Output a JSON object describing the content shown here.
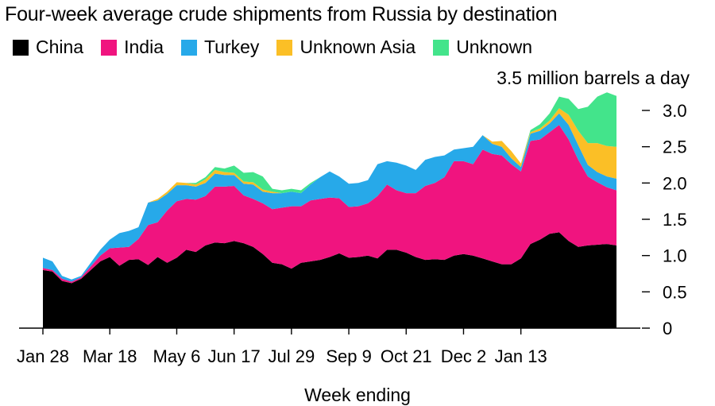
{
  "chart_data": {
    "type": "area",
    "stacked": true,
    "title": "Four-week average crude shipments from Russia by destination",
    "unit_label": "3.5 million barrels a day",
    "xlabel": "Week ending",
    "ylabel": "",
    "ylim": [
      0,
      3.5
    ],
    "y_ticks": [
      0,
      0.5,
      1.0,
      1.5,
      2.0,
      2.5,
      3.0
    ],
    "y_tick_labels": [
      "0",
      "0.5",
      "1.0",
      "1.5",
      "2.0",
      "2.5",
      "3.0"
    ],
    "x_ticks": [
      0,
      7,
      14,
      20,
      26,
      32,
      38,
      44,
      50
    ],
    "x_tick_labels": [
      "Jan 28",
      "Mar 18",
      "May 6",
      "Jun 17",
      "Jul 29",
      "Sep 9",
      "Oct 21",
      "Dec 2",
      "Jan 13"
    ],
    "legend_position": "top-left",
    "grid": false,
    "x": [
      0,
      1,
      2,
      3,
      4,
      5,
      6,
      7,
      8,
      9,
      10,
      11,
      12,
      13,
      14,
      15,
      16,
      17,
      18,
      19,
      20,
      21,
      22,
      23,
      24,
      25,
      26,
      27,
      28,
      29,
      30,
      31,
      32,
      33,
      34,
      35,
      36,
      37,
      38,
      39,
      40,
      41,
      42,
      43,
      44,
      45,
      46,
      47,
      48,
      49,
      50,
      51,
      52,
      53,
      54,
      55,
      56,
      57,
      58,
      59,
      60
    ],
    "series": [
      {
        "name": "China",
        "color": "#000000",
        "values": [
          0.8,
          0.78,
          0.65,
          0.62,
          0.68,
          0.8,
          0.92,
          0.98,
          0.86,
          0.94,
          0.95,
          0.87,
          0.98,
          0.9,
          0.97,
          1.08,
          1.05,
          1.14,
          1.18,
          1.17,
          1.2,
          1.17,
          1.12,
          1.02,
          0.9,
          0.88,
          0.82,
          0.9,
          0.92,
          0.94,
          0.98,
          1.03,
          0.97,
          0.98,
          1.0,
          0.96,
          1.08,
          1.08,
          1.04,
          0.98,
          0.94,
          0.95,
          0.94,
          1.0,
          1.02,
          1.0,
          0.96,
          0.92,
          0.88,
          0.88,
          0.96,
          1.16,
          1.22,
          1.3,
          1.32,
          1.2,
          1.12,
          1.14,
          1.15,
          1.16,
          1.14
        ]
      },
      {
        "name": "India",
        "color": "#f0147f",
        "values": [
          0.03,
          0.02,
          0.03,
          0.02,
          0.02,
          0.05,
          0.08,
          0.12,
          0.25,
          0.18,
          0.28,
          0.55,
          0.48,
          0.72,
          0.78,
          0.7,
          0.72,
          0.68,
          0.77,
          0.78,
          0.76,
          0.66,
          0.66,
          0.7,
          0.74,
          0.78,
          0.86,
          0.78,
          0.84,
          0.84,
          0.82,
          0.76,
          0.7,
          0.7,
          0.72,
          0.86,
          0.9,
          0.82,
          0.82,
          0.88,
          1.02,
          1.05,
          1.14,
          1.3,
          1.28,
          1.26,
          1.5,
          1.48,
          1.5,
          1.38,
          1.2,
          1.42,
          1.38,
          1.4,
          1.48,
          1.4,
          1.2,
          0.95,
          0.86,
          0.78,
          0.76
        ]
      },
      {
        "name": "Turkey",
        "color": "#27a9e9",
        "values": [
          0.14,
          0.12,
          0.04,
          0.03,
          0.02,
          0.05,
          0.08,
          0.12,
          0.2,
          0.22,
          0.16,
          0.31,
          0.3,
          0.23,
          0.22,
          0.19,
          0.18,
          0.18,
          0.18,
          0.16,
          0.15,
          0.16,
          0.2,
          0.16,
          0.22,
          0.2,
          0.2,
          0.18,
          0.22,
          0.3,
          0.36,
          0.3,
          0.32,
          0.32,
          0.32,
          0.44,
          0.32,
          0.38,
          0.38,
          0.32,
          0.36,
          0.36,
          0.3,
          0.16,
          0.18,
          0.24,
          0.2,
          0.14,
          0.12,
          0.08,
          0.06,
          0.1,
          0.12,
          0.12,
          0.16,
          0.2,
          0.2,
          0.16,
          0.14,
          0.15,
          0.16
        ]
      },
      {
        "name": "Unknown Asia",
        "color": "#fbbf26",
        "values": [
          0,
          0,
          0,
          0,
          0,
          0,
          0,
          0,
          0,
          0,
          0,
          0,
          0.02,
          0.03,
          0.04,
          0.03,
          0.03,
          0.05,
          0.05,
          0.04,
          0.03,
          0.03,
          0.03,
          0.03,
          0.02,
          0,
          0,
          0,
          0,
          0,
          0,
          0,
          0,
          0,
          0,
          0,
          0,
          0,
          0,
          0,
          0,
          0,
          0,
          0,
          0,
          0,
          0,
          0.03,
          0.08,
          0.1,
          0.05,
          0.02,
          0.03,
          0.04,
          0.07,
          0.14,
          0.2,
          0.3,
          0.4,
          0.42,
          0.44
        ]
      },
      {
        "name": "Unknown",
        "color": "#43e48b",
        "values": [
          0,
          0,
          0,
          0,
          0,
          0,
          0,
          0,
          0,
          0,
          0,
          0,
          0,
          0,
          0,
          0,
          0.02,
          0.03,
          0.04,
          0.05,
          0.1,
          0.12,
          0.14,
          0.18,
          0.04,
          0.04,
          0.04,
          0.04,
          0.02,
          0,
          0,
          0,
          0,
          0,
          0,
          0,
          0,
          0,
          0,
          0,
          0,
          0,
          0,
          0,
          0,
          0,
          0,
          0,
          0,
          0,
          0,
          0.03,
          0.06,
          0.1,
          0.16,
          0.22,
          0.3,
          0.5,
          0.64,
          0.74,
          0.7
        ]
      }
    ]
  }
}
